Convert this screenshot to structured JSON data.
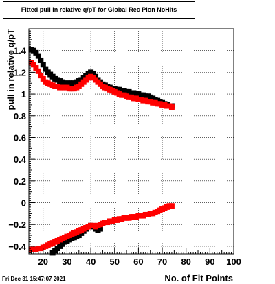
{
  "title": "Fitted pull in relative q/pT for Global Rec Pion NoHits",
  "datestamp": "Fri Dec 31 15:47:07 2021",
  "colors": {
    "series_black": "#000000",
    "series_red": "#ff0000",
    "grid": "#000000",
    "frame": "#000000"
  },
  "chart_data": {
    "type": "scatter",
    "title": "Fitted pull in relative q/pT for Global Rec Pion NoHits",
    "xlabel": "No. of Fit Points",
    "ylabel": "pull in relative q/pT",
    "xlim": [
      14,
      100
    ],
    "ylim": [
      -0.47,
      1.6
    ],
    "xticks": [
      20,
      30,
      40,
      50,
      60,
      70,
      80,
      90,
      100
    ],
    "yticks": [
      -0.4,
      -0.2,
      0,
      0.2,
      0.4,
      0.6,
      0.8,
      1,
      1.2,
      1.4
    ],
    "ytick_labels": [
      "−0.4",
      "−0.2",
      "0",
      "0.2",
      "0.4",
      "0.6",
      "0.8",
      "1",
      "1.2",
      "1.4"
    ],
    "grid": true,
    "series": [
      {
        "color": "#000000",
        "x": [
          15,
          16,
          17,
          18,
          19,
          20,
          21,
          22,
          23,
          24,
          25,
          26,
          27,
          28,
          29,
          30,
          31,
          32,
          33,
          34,
          35,
          36,
          37,
          38,
          39,
          40,
          41,
          42,
          43,
          44,
          45,
          46,
          47,
          48,
          49,
          50,
          51,
          52,
          53,
          54,
          55,
          56,
          57,
          58,
          59,
          60,
          61,
          62,
          63,
          64,
          65,
          66,
          67,
          68,
          69,
          70,
          71,
          72,
          73,
          74
        ],
        "y": [
          1.41,
          1.4,
          1.38,
          1.35,
          1.31,
          1.27,
          1.23,
          1.2,
          1.18,
          1.16,
          1.14,
          1.13,
          1.12,
          1.11,
          1.1,
          1.1,
          1.1,
          1.1,
          1.1,
          1.11,
          1.12,
          1.13,
          1.15,
          1.17,
          1.19,
          1.2,
          1.19,
          1.16,
          1.13,
          1.11,
          1.09,
          1.08,
          1.07,
          1.06,
          1.05,
          1.05,
          1.04,
          1.04,
          1.03,
          1.03,
          1.02,
          1.02,
          1.01,
          1.01,
          1.0,
          1.0,
          0.99,
          0.99,
          0.98,
          0.98,
          0.97,
          0.96,
          0.95,
          0.94,
          0.93,
          0.92,
          0.91,
          0.9,
          0.89,
          0.89
        ]
      },
      {
        "color": "#ff0000",
        "x": [
          15,
          16,
          17,
          18,
          19,
          20,
          21,
          22,
          23,
          24,
          25,
          26,
          27,
          28,
          29,
          30,
          31,
          32,
          33,
          34,
          35,
          36,
          37,
          38,
          39,
          40,
          41,
          42,
          43,
          44,
          45,
          46,
          47,
          48,
          49,
          50,
          51,
          52,
          53,
          54,
          55,
          56,
          57,
          58,
          59,
          60,
          61,
          62,
          63,
          64,
          65,
          66,
          67,
          68,
          69,
          70,
          71,
          72,
          73,
          74
        ],
        "y": [
          1.29,
          1.27,
          1.24,
          1.21,
          1.17,
          1.14,
          1.11,
          1.1,
          1.09,
          1.08,
          1.07,
          1.07,
          1.06,
          1.06,
          1.06,
          1.06,
          1.05,
          1.05,
          1.05,
          1.06,
          1.07,
          1.09,
          1.11,
          1.13,
          1.15,
          1.16,
          1.15,
          1.13,
          1.11,
          1.09,
          1.07,
          1.06,
          1.05,
          1.04,
          1.03,
          1.02,
          1.01,
          1.0,
          0.99,
          0.99,
          0.98,
          0.97,
          0.97,
          0.96,
          0.96,
          0.95,
          0.95,
          0.94,
          0.94,
          0.93,
          0.93,
          0.92,
          0.92,
          0.91,
          0.91,
          0.9,
          0.9,
          0.89,
          0.89,
          0.88
        ]
      },
      {
        "color": "#000000",
        "x": [
          24,
          25,
          26,
          27,
          28,
          29,
          30,
          31,
          32,
          33,
          34,
          35,
          36,
          37,
          38,
          39,
          40,
          41,
          42,
          43,
          44
        ],
        "y": [
          -0.46,
          -0.44,
          -0.42,
          -0.4,
          -0.38,
          -0.36,
          -0.35,
          -0.34,
          -0.33,
          -0.32,
          -0.31,
          -0.3,
          -0.28,
          -0.26,
          -0.24,
          -0.22,
          -0.21,
          -0.22,
          -0.24,
          -0.25,
          -0.24
        ]
      },
      {
        "color": "#ff0000",
        "x": [
          15,
          16,
          17,
          18,
          19,
          20,
          21,
          22,
          23,
          24,
          25,
          26,
          27,
          28,
          29,
          30,
          31,
          32,
          33,
          34,
          35,
          36,
          37,
          38,
          39,
          40,
          41,
          42,
          43,
          44,
          45,
          46,
          47,
          48,
          49,
          50,
          51,
          52,
          53,
          54,
          55,
          56,
          57,
          58,
          59,
          60,
          61,
          62,
          63,
          64,
          65,
          66,
          67,
          68,
          69,
          70,
          71,
          72,
          73,
          74
        ],
        "y": [
          -0.43,
          -0.43,
          -0.43,
          -0.42,
          -0.42,
          -0.41,
          -0.4,
          -0.39,
          -0.38,
          -0.37,
          -0.36,
          -0.35,
          -0.34,
          -0.33,
          -0.32,
          -0.31,
          -0.3,
          -0.29,
          -0.28,
          -0.27,
          -0.26,
          -0.25,
          -0.24,
          -0.23,
          -0.22,
          -0.21,
          -0.21,
          -0.22,
          -0.21,
          -0.2,
          -0.19,
          -0.18,
          -0.18,
          -0.17,
          -0.17,
          -0.16,
          -0.16,
          -0.15,
          -0.15,
          -0.14,
          -0.14,
          -0.14,
          -0.13,
          -0.13,
          -0.13,
          -0.12,
          -0.12,
          -0.12,
          -0.11,
          -0.11,
          -0.1,
          -0.1,
          -0.09,
          -0.08,
          -0.07,
          -0.06,
          -0.05,
          -0.04,
          -0.03,
          -0.03
        ]
      }
    ]
  }
}
